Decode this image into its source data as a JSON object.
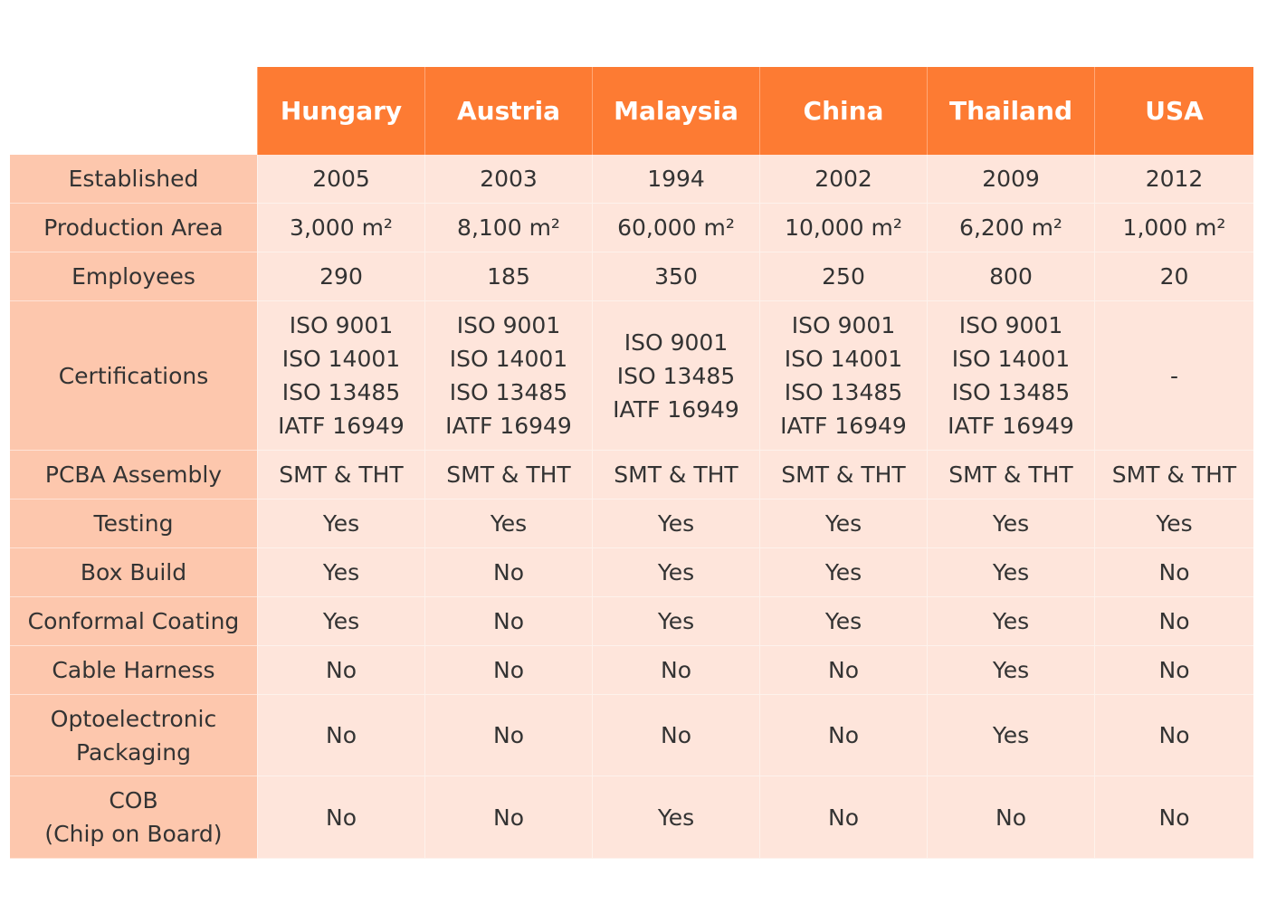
{
  "columns": [
    "Hungary",
    "Austria",
    "Malaysia",
    "China",
    "Thailand",
    "USA"
  ],
  "rows": [
    {
      "label": [
        "Established"
      ],
      "values": [
        [
          "2005"
        ],
        [
          "2003"
        ],
        [
          "1994"
        ],
        [
          "2002"
        ],
        [
          "2009"
        ],
        [
          "2012"
        ]
      ]
    },
    {
      "label": [
        "Production Area"
      ],
      "values": [
        [
          "3,000 m²"
        ],
        [
          "8,100 m²"
        ],
        [
          "60,000 m²"
        ],
        [
          "10,000 m²"
        ],
        [
          "6,200 m²"
        ],
        [
          "1,000 m²"
        ]
      ]
    },
    {
      "label": [
        "Employees"
      ],
      "values": [
        [
          "290"
        ],
        [
          "185"
        ],
        [
          "350"
        ],
        [
          "250"
        ],
        [
          "800"
        ],
        [
          "20"
        ]
      ]
    },
    {
      "label": [
        "Certifications"
      ],
      "values": [
        [
          "ISO 9001",
          "ISO 14001",
          "ISO 13485",
          "IATF 16949"
        ],
        [
          "ISO 9001",
          "ISO 14001",
          "ISO 13485",
          "IATF 16949"
        ],
        [
          "ISO 9001",
          "ISO 13485",
          "IATF 16949"
        ],
        [
          "ISO 9001",
          "ISO 14001",
          "ISO 13485",
          "IATF 16949"
        ],
        [
          "ISO 9001",
          "ISO 14001",
          "ISO 13485",
          "IATF 16949"
        ],
        [
          "-"
        ]
      ]
    },
    {
      "label": [
        "PCBA Assembly"
      ],
      "values": [
        [
          "SMT & THT"
        ],
        [
          "SMT & THT"
        ],
        [
          "SMT & THT"
        ],
        [
          "SMT & THT"
        ],
        [
          "SMT & THT"
        ],
        [
          "SMT & THT"
        ]
      ]
    },
    {
      "label": [
        "Testing"
      ],
      "values": [
        [
          "Yes"
        ],
        [
          "Yes"
        ],
        [
          "Yes"
        ],
        [
          "Yes"
        ],
        [
          "Yes"
        ],
        [
          "Yes"
        ]
      ]
    },
    {
      "label": [
        "Box Build"
      ],
      "values": [
        [
          "Yes"
        ],
        [
          "No"
        ],
        [
          "Yes"
        ],
        [
          "Yes"
        ],
        [
          "Yes"
        ],
        [
          "No"
        ]
      ]
    },
    {
      "label": [
        "Conformal Coating"
      ],
      "values": [
        [
          "Yes"
        ],
        [
          "No"
        ],
        [
          "Yes"
        ],
        [
          "Yes"
        ],
        [
          "Yes"
        ],
        [
          "No"
        ]
      ]
    },
    {
      "label": [
        "Cable Harness"
      ],
      "values": [
        [
          "No"
        ],
        [
          "No"
        ],
        [
          "No"
        ],
        [
          "No"
        ],
        [
          "Yes"
        ],
        [
          "No"
        ]
      ]
    },
    {
      "label": [
        "Optoelectronic",
        "Packaging"
      ],
      "values": [
        [
          "No"
        ],
        [
          "No"
        ],
        [
          "No"
        ],
        [
          "No"
        ],
        [
          "Yes"
        ],
        [
          "No"
        ]
      ]
    },
    {
      "label": [
        "COB",
        "(Chip on Board)"
      ],
      "values": [
        [
          "No"
        ],
        [
          "No"
        ],
        [
          "Yes"
        ],
        [
          "No"
        ],
        [
          "No"
        ],
        [
          "No"
        ]
      ]
    }
  ]
}
